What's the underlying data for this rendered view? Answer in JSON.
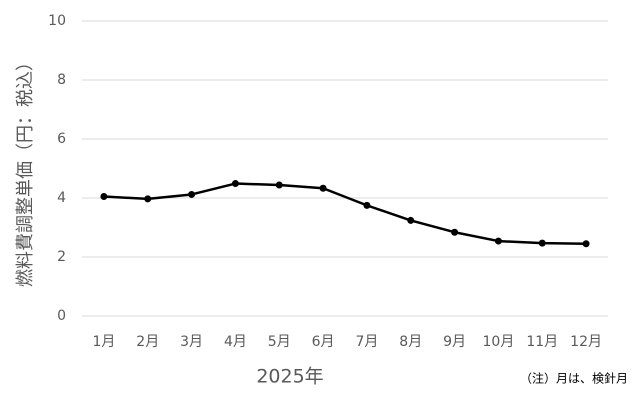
{
  "chart_data": {
    "type": "line",
    "y_label": "燃料費調整単価（円：税込）",
    "x_label": "2025年",
    "note": "（注）月は、検針月",
    "categories": [
      "1月",
      "2月",
      "3月",
      "4月",
      "5月",
      "6月",
      "7月",
      "8月",
      "9月",
      "10月",
      "11月",
      "12月"
    ],
    "series": [
      {
        "color": "#000000",
        "values": [
          4.05,
          3.97,
          4.12,
          4.49,
          4.44,
          4.33,
          3.75,
          3.24,
          2.84,
          2.54,
          2.47,
          2.45
        ]
      }
    ],
    "ylim": [
      0,
      10
    ],
    "yticks": [
      0,
      2,
      4,
      6,
      8,
      10
    ],
    "grid": true
  }
}
